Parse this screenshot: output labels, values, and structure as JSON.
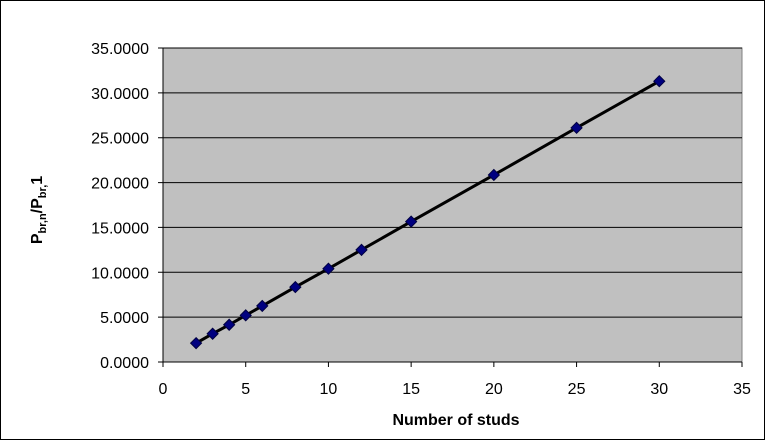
{
  "chart_data": {
    "type": "scatter",
    "x_label": "Number of studs",
    "y_label": {
      "main": "P",
      "sub1": "br,n",
      "sep": "/P",
      "sub2": "br,",
      "tail": "1"
    },
    "xlim": [
      0,
      35
    ],
    "ylim": [
      0,
      35
    ],
    "x_ticks": [
      "0",
      "5",
      "10",
      "15",
      "20",
      "25",
      "30",
      "35"
    ],
    "y_ticks": [
      "0.0000",
      "5.0000",
      "10.0000",
      "15.0000",
      "20.0000",
      "25.0000",
      "30.0000",
      "35.0000"
    ],
    "grid": "horizontal",
    "plot_background": "#c0c0c0",
    "marker_color": "#000080",
    "line_color": "#000000",
    "points": [
      {
        "x": 2,
        "y": 2.1
      },
      {
        "x": 3,
        "y": 3.15
      },
      {
        "x": 4,
        "y": 4.15
      },
      {
        "x": 5,
        "y": 5.2
      },
      {
        "x": 6,
        "y": 6.25
      },
      {
        "x": 8,
        "y": 8.35
      },
      {
        "x": 10,
        "y": 10.4
      },
      {
        "x": 12,
        "y": 12.5
      },
      {
        "x": 15,
        "y": 15.65
      },
      {
        "x": 20,
        "y": 20.85
      },
      {
        "x": 25,
        "y": 26.1
      },
      {
        "x": 30,
        "y": 31.3
      }
    ]
  }
}
